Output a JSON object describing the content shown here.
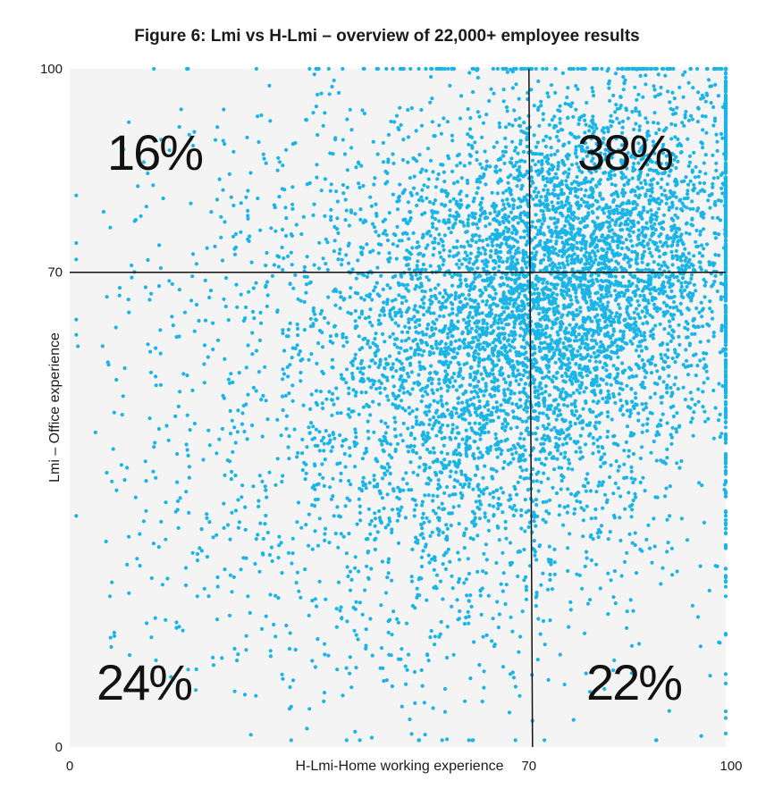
{
  "chart_data": {
    "type": "scatter",
    "title": "Figure 6: Lmi vs H-Lmi – overview of 22,000+ employee results",
    "xlabel": "H-Lmi-Home working experience",
    "ylabel": "Lmi – Office experience",
    "xlim": [
      0,
      100
    ],
    "ylim": [
      0,
      100
    ],
    "x_ticks": [
      "0",
      "70",
      "100"
    ],
    "y_ticks": [
      "0",
      "70",
      "100"
    ],
    "threshold_x": 70,
    "threshold_y": 70,
    "quadrant_labels": {
      "top_left": "16%",
      "top_right": "38%",
      "bottom_left": "24%",
      "bottom_right": "22%"
    },
    "point_color": "#1ab4e6",
    "plot_background": "#f4f4f4",
    "grid": false
  }
}
